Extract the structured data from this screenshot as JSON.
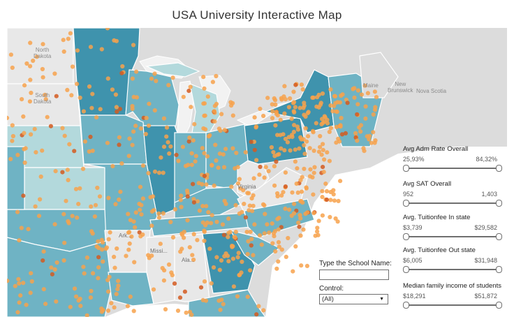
{
  "title": "USA University Interactive Map",
  "map_labels": [
    {
      "id": "north-dakota",
      "text": "North\nDakota"
    },
    {
      "id": "south-dakota",
      "text": "South\nDakota"
    },
    {
      "id": "new-brunswick",
      "text": "New\nBrunswick"
    },
    {
      "id": "maine",
      "text": "Maine"
    },
    {
      "id": "nova-scotia",
      "text": "Nova Scotia"
    },
    {
      "id": "virginia",
      "text": "Virginia"
    },
    {
      "id": "arkansas",
      "text": "Ark..."
    },
    {
      "id": "mississippi",
      "text": "Missi..."
    },
    {
      "id": "alabama",
      "text": "Ala..."
    }
  ],
  "filters": [
    {
      "title": "Avg Adm Rate Overall",
      "min": "25,93%",
      "max": "84,32%"
    },
    {
      "title": "Avg SAT Overall",
      "min": "952",
      "max": "1,403"
    },
    {
      "title": "Avg. Tuitionfee In state",
      "min": "$3,739",
      "max": "$29,582"
    },
    {
      "title": "Avg. Tuitionfee Out state",
      "min": "$6,005",
      "max": "$31,948"
    },
    {
      "title": "Median family income of students",
      "min": "$18,291",
      "max": "$51,872"
    }
  ],
  "school_name": {
    "label": "Type the School Name:",
    "value": ""
  },
  "control": {
    "label": "Control:",
    "value": "(All)"
  },
  "colors": {
    "state_dark": "#3f93ad",
    "state_mid": "#6fb3c4",
    "state_light": "#b3d9dc",
    "state_pale": "#e8e8e8",
    "point": "#f7a24c",
    "point_dark": "#d45a20",
    "land": "#dcdcdc"
  }
}
